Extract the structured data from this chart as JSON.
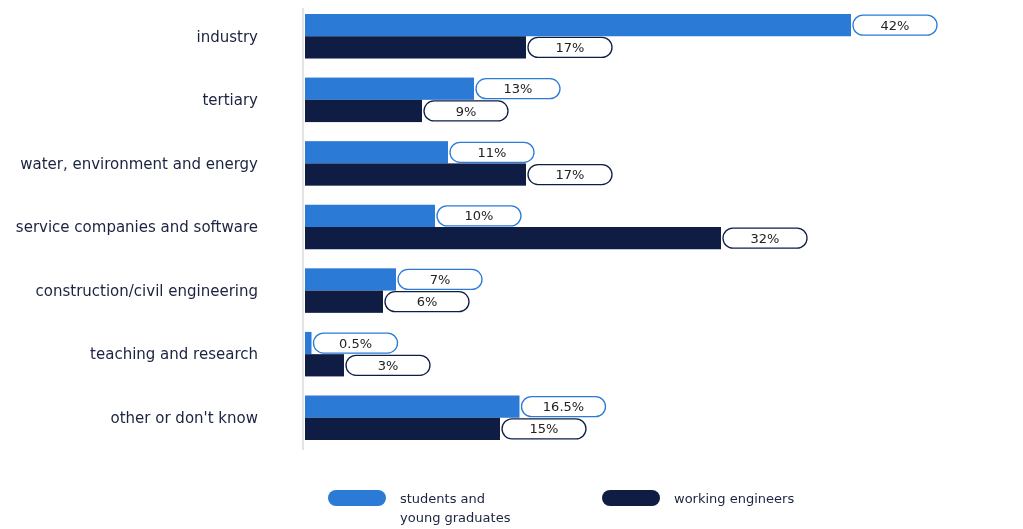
{
  "chart_data": {
    "type": "bar",
    "orientation": "horizontal",
    "categories": [
      "industry",
      "tertiary",
      "water, environment and energy",
      "service companies and software",
      "construction/civil engineering",
      "teaching and research",
      "other or don't know"
    ],
    "series": [
      {
        "name": "students and young graduates",
        "color": "#2a7ad6",
        "values": [
          42,
          13,
          11,
          10,
          7,
          0.5,
          16.5
        ],
        "value_labels": [
          "42%",
          "13%",
          "11%",
          "10%",
          "7%",
          "0.5%",
          "16.5%"
        ]
      },
      {
        "name": "working engineers",
        "color": "#0f1d45",
        "values": [
          17,
          9,
          17,
          32,
          6,
          3,
          15
        ],
        "value_labels": [
          "17%",
          "9%",
          "17%",
          "32%",
          "6%",
          "3%",
          "15%"
        ]
      }
    ],
    "xlim": [
      0,
      55
    ],
    "relative": false,
    "legend": "bottom"
  }
}
